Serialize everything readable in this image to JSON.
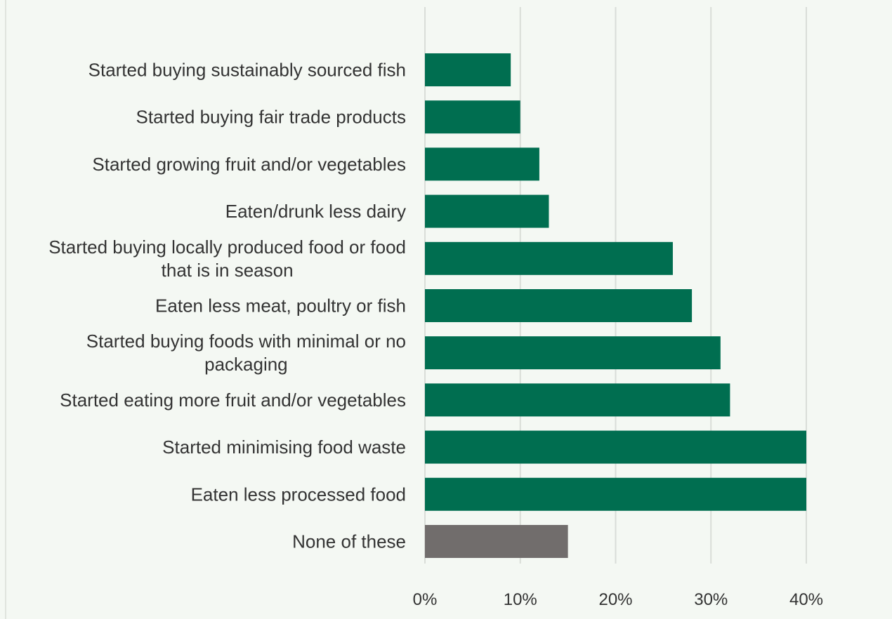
{
  "colors": {
    "background": "#f4f8f3",
    "bar": "#006e50",
    "bar_none": "#716d6c",
    "grid": "#d9ddd8",
    "label_text": "#333333"
  },
  "chart_data": {
    "type": "bar",
    "orientation": "horizontal",
    "categories": [
      [
        "Started buying sustainably sourced fish"
      ],
      [
        "Started buying fair trade products"
      ],
      [
        "Started growing fruit and/or vegetables"
      ],
      [
        "Eaten/drunk less dairy"
      ],
      [
        "Started buying locally produced food or food",
        "that is in season"
      ],
      [
        "Eaten less meat, poultry or fish"
      ],
      [
        "Started buying foods with minimal or no",
        "packaging"
      ],
      [
        "Started eating more fruit and/or vegetables"
      ],
      [
        "Started minimising food waste"
      ],
      [
        "Eaten less processed food"
      ],
      [
        "None of these"
      ]
    ],
    "values": [
      9,
      10,
      12,
      13,
      26,
      28,
      31,
      32,
      40,
      40,
      15
    ],
    "bar_colors": [
      "#006e50",
      "#006e50",
      "#006e50",
      "#006e50",
      "#006e50",
      "#006e50",
      "#006e50",
      "#006e50",
      "#006e50",
      "#006e50",
      "#716d6c"
    ],
    "xlim": [
      0,
      40
    ],
    "x_ticks": [
      0,
      10,
      20,
      30,
      40
    ],
    "x_tick_labels": [
      "0%",
      "10%",
      "20%",
      "30%",
      "40%"
    ],
    "grid": true,
    "title": "",
    "xlabel": "",
    "ylabel": ""
  }
}
